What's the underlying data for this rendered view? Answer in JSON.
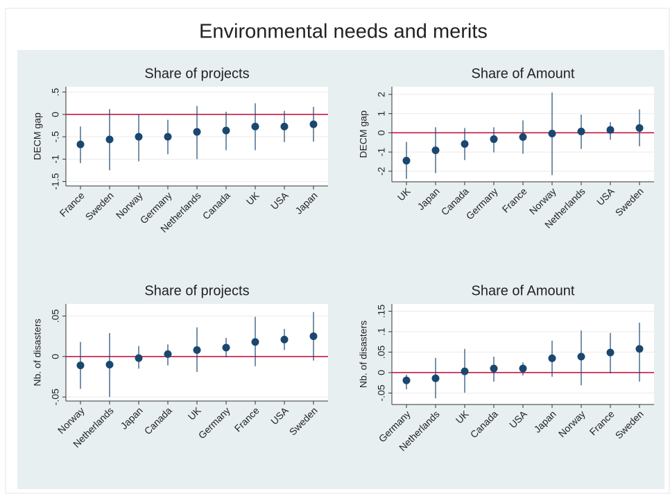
{
  "title": "Environmental needs and merits",
  "chart_data": [
    {
      "type": "errorbar",
      "title": "Share of projects",
      "y_label": "DECM gap",
      "categories": [
        "France",
        "Sweden",
        "Norway",
        "Germany",
        "Netherlands",
        "Canada",
        "UK",
        "USA",
        "Japan"
      ],
      "values": [
        -0.67,
        -0.56,
        -0.5,
        -0.5,
        -0.39,
        -0.36,
        -0.27,
        -0.27,
        -0.22
      ],
      "ci_low": [
        -1.09,
        -1.25,
        -1.05,
        -0.89,
        -1.0,
        -0.8,
        -0.8,
        -0.62,
        -0.61
      ],
      "ci_high": [
        -0.27,
        0.12,
        0.0,
        -0.12,
        0.19,
        0.06,
        0.25,
        0.08,
        0.17
      ],
      "color": "#1a476f",
      "refline": 0,
      "refline_color": "#c10534",
      "ylim": [
        -1.6,
        0.62
      ],
      "yticks": [
        {
          "value": 0.5,
          "label": ".5"
        },
        0,
        {
          "value": -0.5,
          "label": "-.5"
        },
        -1,
        {
          "value": -1.5,
          "label": "-1.5"
        }
      ],
      "grid": true
    },
    {
      "type": "errorbar",
      "title": "Share of Amount",
      "y_label": "DECM gap",
      "categories": [
        "UK",
        "Japan",
        "Canada",
        "Germany",
        "France",
        "Norway",
        "Netherlands",
        "USA",
        "Sweden"
      ],
      "values": [
        -1.45,
        -0.91,
        -0.58,
        -0.33,
        -0.22,
        -0.04,
        0.07,
        0.15,
        0.25
      ],
      "ci_low": [
        -2.4,
        -2.1,
        -1.42,
        -1.02,
        -1.09,
        -2.2,
        -0.84,
        -0.36,
        -0.7
      ],
      "ci_high": [
        -0.47,
        0.29,
        0.25,
        0.29,
        0.65,
        2.1,
        0.95,
        0.55,
        1.22
      ],
      "color": "#1a476f",
      "refline": 0,
      "refline_color": "#c10534",
      "ylim": [
        -2.55,
        2.4
      ],
      "yticks": [
        2,
        1,
        0,
        -1,
        -2
      ],
      "grid": true
    },
    {
      "type": "errorbar",
      "title": "Share of projects",
      "y_label": "Nb. of disasters",
      "categories": [
        "Norway",
        "Netherlands",
        "Japan",
        "Canada",
        "UK",
        "Germany",
        "France",
        "USA",
        "Sweden"
      ],
      "values": [
        -0.011,
        -0.01,
        -0.002,
        0.003,
        0.008,
        0.011,
        0.018,
        0.021,
        0.025
      ],
      "ci_low": [
        -0.04,
        -0.05,
        -0.015,
        -0.011,
        -0.019,
        -0.001,
        -0.012,
        0.008,
        -0.005
      ],
      "ci_high": [
        0.018,
        0.029,
        0.013,
        0.015,
        0.036,
        0.023,
        0.049,
        0.034,
        0.055
      ],
      "color": "#1a476f",
      "refline": 0,
      "refline_color": "#c10534",
      "ylim": [
        -0.055,
        0.065
      ],
      "yticks": [
        {
          "value": 0.05,
          "label": ".05"
        },
        0,
        {
          "value": -0.05,
          "label": "-.05"
        }
      ],
      "grid": true
    },
    {
      "type": "errorbar",
      "title": "Share of Amount",
      "y_label": "Nb. of disasters",
      "categories": [
        "Germany",
        "Netherlands",
        "UK",
        "Canada",
        "USA",
        "Japan",
        "Norway",
        "France",
        "Sweden"
      ],
      "values": [
        -0.019,
        -0.014,
        0.003,
        0.01,
        0.01,
        0.035,
        0.039,
        0.049,
        0.058
      ],
      "ci_low": [
        -0.041,
        -0.063,
        -0.049,
        -0.022,
        -0.007,
        -0.01,
        -0.031,
        -0.002,
        -0.022
      ],
      "ci_high": [
        -0.005,
        0.036,
        0.058,
        0.039,
        0.025,
        0.078,
        0.103,
        0.097,
        0.122
      ],
      "color": "#1a476f",
      "refline": 0,
      "refline_color": "#c10534",
      "ylim": [
        -0.078,
        0.168
      ],
      "yticks": [
        {
          "value": 0.15,
          "label": ".15"
        },
        {
          "value": 0.1,
          "label": ".1"
        },
        {
          "value": 0.05,
          "label": ".05"
        },
        0,
        {
          "value": -0.05,
          "label": "-.05"
        }
      ],
      "grid": true
    }
  ]
}
